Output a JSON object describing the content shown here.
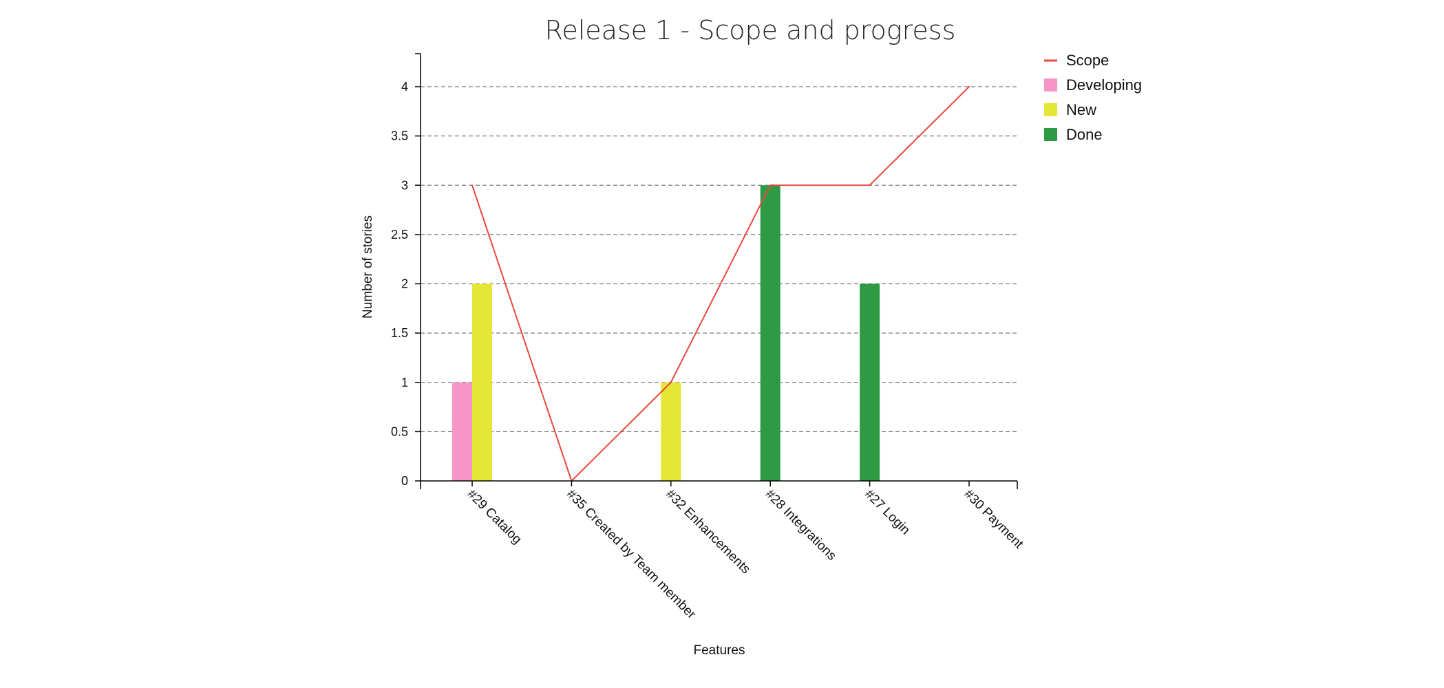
{
  "chart_data": {
    "type": "bar",
    "title": "Release 1 - Scope and progress",
    "xlabel": "Features",
    "ylabel": "Number of stories",
    "categories": [
      "#29 Catalog",
      "#35 Created by Team member",
      "#32 Enhancements",
      "#28 Integrations",
      "#27 Login",
      "#30 Payment"
    ],
    "yticks": [
      "0",
      "0.5",
      "1",
      "1.5",
      "2",
      "2.5",
      "3",
      "3.5",
      "4"
    ],
    "ylim": [
      0,
      4.3
    ],
    "grid": true,
    "legend_placement": "top-right",
    "series": [
      {
        "name": "Developing",
        "kind": "bar",
        "color": "#f795c8",
        "values": [
          1,
          0,
          0,
          0,
          0,
          0
        ]
      },
      {
        "name": "New",
        "kind": "bar",
        "color": "#e6e637",
        "values": [
          2,
          0,
          1,
          0,
          0,
          0
        ]
      },
      {
        "name": "Done",
        "kind": "bar",
        "color": "#2e9a44",
        "values": [
          0,
          0,
          0,
          3,
          2,
          0
        ]
      },
      {
        "name": "Scope",
        "kind": "line",
        "color": "#e8483f",
        "values": [
          3,
          0,
          1,
          3,
          3,
          4
        ]
      }
    ],
    "legend": [
      {
        "name": "Scope",
        "marker": "line",
        "color": "#e8483f"
      },
      {
        "name": "Developing",
        "marker": "square",
        "color": "#f795c8"
      },
      {
        "name": "New",
        "marker": "square",
        "color": "#e6e637"
      },
      {
        "name": "Done",
        "marker": "square",
        "color": "#2e9a44"
      }
    ]
  }
}
